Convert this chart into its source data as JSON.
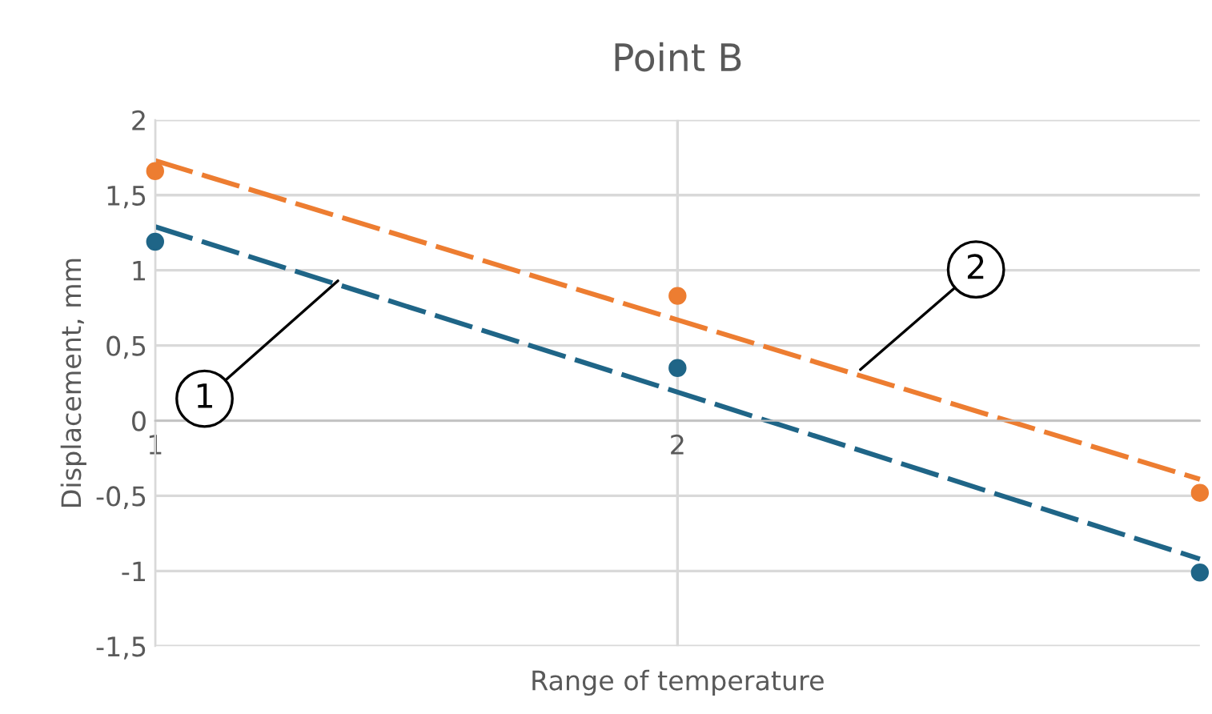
{
  "chart_data": {
    "type": "scatter",
    "title": "Point B",
    "xlabel": "Range of temperature",
    "ylabel": "Displacement, mm",
    "x": [
      1,
      2,
      3
    ],
    "series": [
      {
        "color": "#ed7d31",
        "values": [
          1.66,
          0.83,
          -0.48
        ],
        "marker": "circle"
      },
      {
        "color": "#1f6587",
        "values": [
          1.19,
          0.35,
          -1.01
        ],
        "marker": "circle"
      },
      {
        "type": "line",
        "color": "#ed7d31",
        "values": [
          1.73,
          0.67,
          -0.39
        ],
        "line_style": "dashed",
        "marker": "none"
      },
      {
        "type": "line",
        "color": "#1f6587",
        "values": [
          1.29,
          0.19,
          -0.92
        ],
        "line_style": "dashed",
        "marker": "none"
      }
    ],
    "annotations": [
      {
        "text": "1",
        "x": 1.35,
        "y": 0.93
      },
      {
        "text": "2",
        "x": 2.35,
        "y": 0.34
      }
    ],
    "xlim": [
      1,
      3
    ],
    "xticks": [
      1,
      2
    ],
    "ylim": [
      -1.5,
      2
    ],
    "yticks": [
      2,
      {
        "value": 1.5,
        "label": "1,5"
      },
      1,
      {
        "value": 0.5,
        "label": "0,5"
      },
      0,
      {
        "value": -0.5,
        "label": "-0,5"
      },
      -1,
      {
        "value": -1.5,
        "label": "-1,5"
      }
    ],
    "grid": true,
    "legend": false
  }
}
